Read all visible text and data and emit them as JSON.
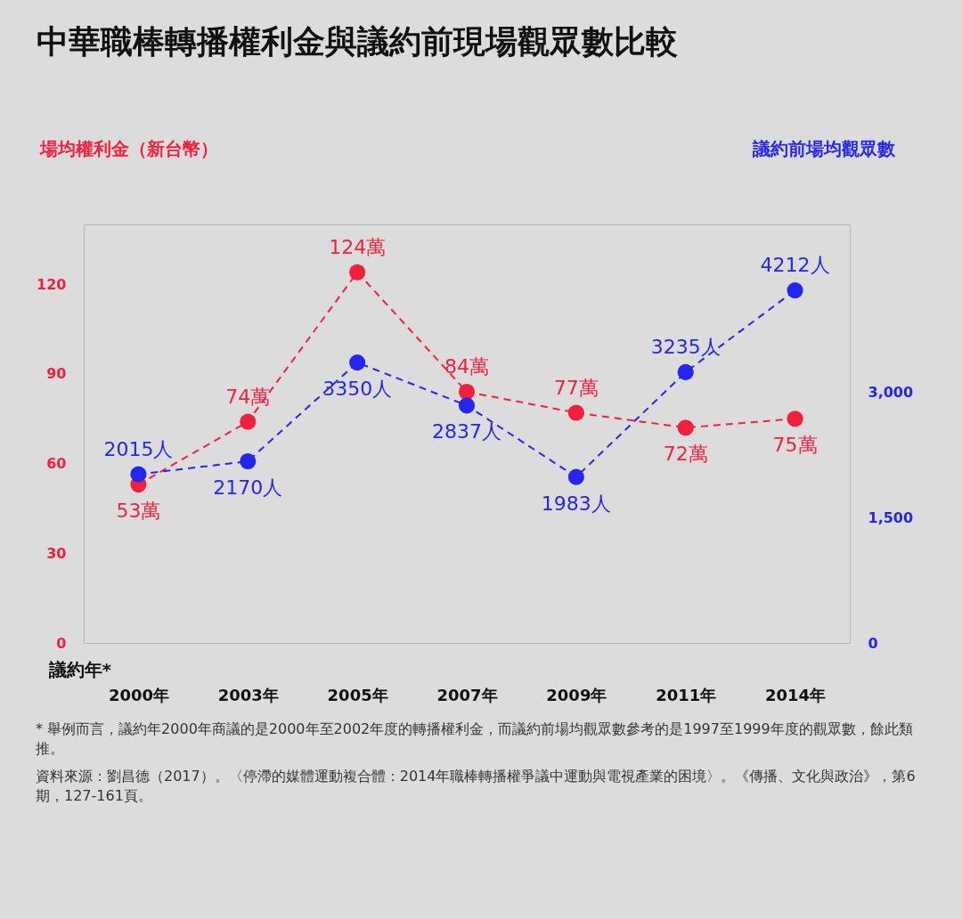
{
  "chart_data": {
    "type": "line",
    "title": "中華職棒轉播權利金與議約前現場觀眾數比較",
    "xlabel": "議約年*",
    "ylabel": "場均權利金（新台幣）",
    "y2label": "議約前場均觀眾數",
    "categories": [
      "2000年",
      "2003年",
      "2005年",
      "2007年",
      "2009年",
      "2011年",
      "2014年"
    ],
    "series": [
      {
        "color": "#f2203c",
        "values": [
          53,
          74,
          124,
          84,
          77,
          72,
          75
        ],
        "value_labels": [
          "53萬",
          "74萬",
          "124萬",
          "84萬",
          "77萬",
          "72萬",
          "75萬"
        ]
      },
      {
        "color": "#2525f0",
        "axis": "y2",
        "values": [
          2015,
          2170,
          3350,
          2837,
          1983,
          3235,
          4212
        ],
        "value_labels": [
          "2015人",
          "2170人",
          "3350人",
          "2837人",
          "1983人",
          "3235人",
          "4212人"
        ]
      }
    ],
    "ylim": [
      0,
      140
    ],
    "yticks": [
      0,
      30,
      60,
      90,
      120
    ],
    "y2lim": [
      0,
      5000
    ],
    "y2ticks": [
      0,
      {
        "value": 1500,
        "label": "1,500"
      },
      {
        "value": 3000,
        "label": "3,000"
      }
    ],
    "marker": "circle",
    "line_style": "dashed",
    "annotations": [
      "* 舉例而言，議約年2000年商議的是2000年至2002年度的轉播權利金，而議約前場均觀眾數參考的是1997至1999年度的觀眾數，餘此類推。",
      "資料來源：劉昌德（2017）。〈停滯的媒體運動複合體：2014年職棒轉播權爭議中運動與電視產業的困境〉。《傳播、文化與政治》，第6期，127-161頁。"
    ]
  }
}
